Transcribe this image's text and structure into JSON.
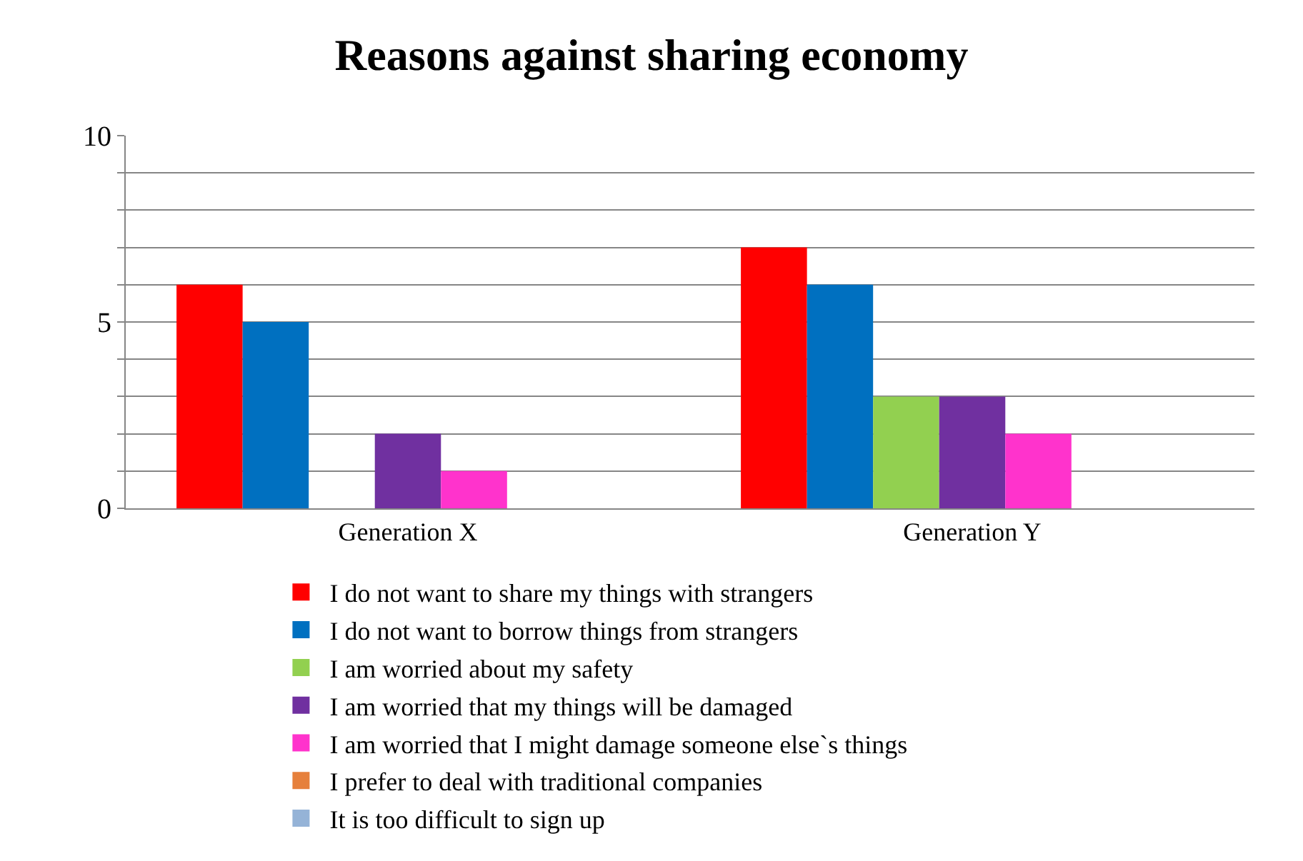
{
  "chart_data": {
    "type": "bar",
    "title": "Reasons against sharing economy",
    "categories": [
      "Generation X",
      "Generation Y"
    ],
    "series": [
      {
        "name": "I do not want to share my things with strangers",
        "color": "#ff0000",
        "values": [
          6,
          7
        ]
      },
      {
        "name": "I do not want to borrow things from strangers",
        "color": "#0070c0",
        "values": [
          5,
          6
        ]
      },
      {
        "name": "I am worried about my safety",
        "color": "#92d050",
        "values": [
          0,
          3
        ]
      },
      {
        "name": "I am worried that my things will be damaged",
        "color": "#7030a0",
        "values": [
          2,
          3
        ]
      },
      {
        "name": "I am worried that I might damage someone else`s things",
        "color": "#ff33cc",
        "values": [
          1,
          2
        ]
      },
      {
        "name": "I prefer to deal with traditional companies",
        "color": "#e6803c",
        "values": [
          0,
          0
        ]
      },
      {
        "name": "It is too difficult to sign up",
        "color": "#95b3d7",
        "values": [
          0,
          0
        ]
      }
    ],
    "ylim": [
      0,
      10
    ],
    "yticks": [
      0,
      {
        "value": 1,
        "label": null
      },
      {
        "value": 2,
        "label": null
      },
      {
        "value": 3,
        "label": null
      },
      {
        "value": 4,
        "label": null
      },
      5,
      {
        "value": 6,
        "label": null
      },
      {
        "value": 7,
        "label": null
      },
      {
        "value": 8,
        "label": null
      },
      {
        "value": 9,
        "label": null
      },
      10
    ],
    "grid": "y",
    "legend": "bottom"
  }
}
